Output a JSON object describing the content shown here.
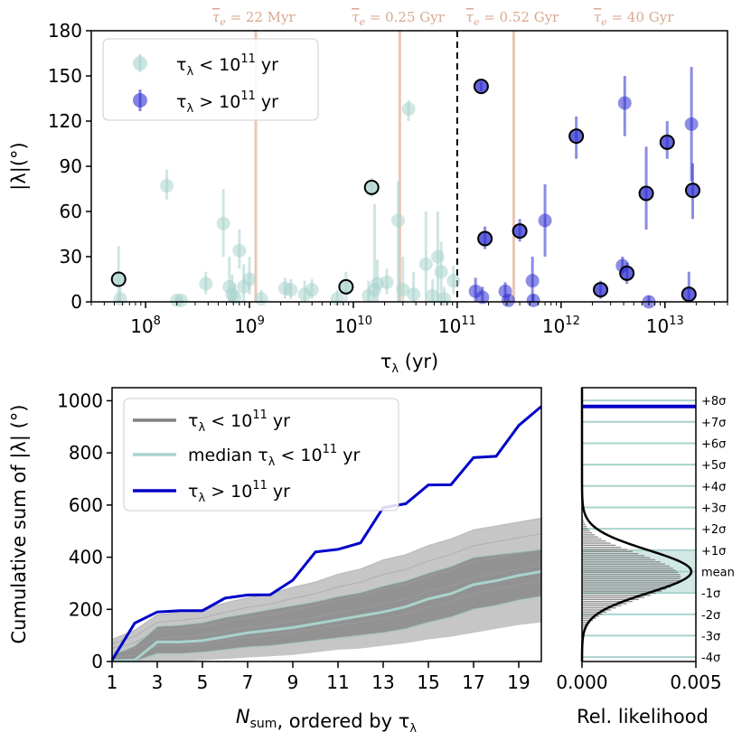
{
  "chart_data": [
    {
      "type": "scatter",
      "xlabel": "τλ (yr)",
      "ylabel": "|λ|(°)",
      "xscale": "log",
      "xlim": [
        30000000,
        40000000000000
      ],
      "ylim": [
        0,
        180
      ],
      "yticks": [
        "0",
        "30",
        "60",
        "90",
        "120",
        "150",
        "180"
      ],
      "xticks": [
        "10^8",
        "10^9",
        "10^10",
        "10^11",
        "10^12",
        "10^13"
      ],
      "colors": {
        "low": "#a9d3cd",
        "high": "#3030d0",
        "tau_lines": "#e7c1ad",
        "edge": "#000000"
      },
      "legend": {
        "placement": "top-left",
        "low_label": "τλ < 10^11 yr",
        "high_label": "τλ > 10^11 yr"
      },
      "threshold": 100000000000,
      "timescale_labels": [
        {
          "x": 1100000000,
          "text": "τe = 22 Myr"
        },
        {
          "x": 27000000000,
          "text": "τe = 0.25 Gyr"
        },
        {
          "x": 340000000000,
          "text": "τe = 0.52 Gyr"
        },
        {
          "x": 5000000000000,
          "text": "τe = 40 Gyr"
        }
      ],
      "tau_lines": [
        1150000000,
        28000000000,
        350000000000
      ],
      "low_series": [
        {
          "x": 55000000,
          "y": 15,
          "lo": 0,
          "hi": 37,
          "edge": true
        },
        {
          "x": 57000000,
          "y": 2,
          "lo": 0,
          "hi": 10,
          "edge": false
        },
        {
          "x": 160000000,
          "y": 77,
          "lo": 68,
          "hi": 88,
          "edge": false
        },
        {
          "x": 200000000,
          "y": 1,
          "lo": 0,
          "hi": 3,
          "edge": false
        },
        {
          "x": 220000000,
          "y": 1,
          "lo": 0,
          "hi": 3,
          "edge": false
        },
        {
          "x": 380000000,
          "y": 12,
          "lo": 5,
          "hi": 20,
          "edge": false
        },
        {
          "x": 560000000,
          "y": 52,
          "lo": 30,
          "hi": 75,
          "edge": false
        },
        {
          "x": 640000000,
          "y": 10,
          "lo": 0,
          "hi": 30,
          "edge": false
        },
        {
          "x": 680000000,
          "y": 5,
          "lo": 0,
          "hi": 18,
          "edge": false
        },
        {
          "x": 720000000,
          "y": 3,
          "lo": 0,
          "hi": 12,
          "edge": false
        },
        {
          "x": 800000000,
          "y": 34,
          "lo": 22,
          "hi": 48,
          "edge": false
        },
        {
          "x": 880000000,
          "y": 10,
          "lo": 0,
          "hi": 25,
          "edge": false
        },
        {
          "x": 1000000000,
          "y": 15,
          "lo": 5,
          "hi": 30,
          "edge": false
        },
        {
          "x": 1300000000,
          "y": 2,
          "lo": 0,
          "hi": 8,
          "edge": false
        },
        {
          "x": 2200000000,
          "y": 9,
          "lo": 2,
          "hi": 16,
          "edge": false
        },
        {
          "x": 2500000000,
          "y": 8,
          "lo": 2,
          "hi": 15,
          "edge": false
        },
        {
          "x": 3400000000,
          "y": 5,
          "lo": 0,
          "hi": 14,
          "edge": false
        },
        {
          "x": 4000000000,
          "y": 8,
          "lo": 2,
          "hi": 15,
          "edge": false
        },
        {
          "x": 7000000000,
          "y": 2,
          "lo": 0,
          "hi": 8,
          "edge": false
        },
        {
          "x": 8500000000,
          "y": 10,
          "lo": 0,
          "hi": 20,
          "edge": true
        },
        {
          "x": 14000000000,
          "y": 4,
          "lo": 0,
          "hi": 14,
          "edge": false
        },
        {
          "x": 15000000000,
          "y": 76,
          "lo": 70,
          "hi": 82,
          "edge": true
        },
        {
          "x": 16000000000,
          "y": 8,
          "lo": 0,
          "hi": 65,
          "edge": false
        },
        {
          "x": 17000000000,
          "y": 12,
          "lo": 0,
          "hi": 28,
          "edge": false
        },
        {
          "x": 21000000000,
          "y": 13,
          "lo": 5,
          "hi": 22,
          "edge": false
        },
        {
          "x": 27000000000,
          "y": 54,
          "lo": 0,
          "hi": 80,
          "edge": false
        },
        {
          "x": 30000000000,
          "y": 8,
          "lo": 0,
          "hi": 30,
          "edge": false
        },
        {
          "x": 34000000000,
          "y": 128,
          "lo": 120,
          "hi": 134,
          "edge": false
        },
        {
          "x": 38000000000,
          "y": 5,
          "lo": 0,
          "hi": 20,
          "edge": false
        },
        {
          "x": 50000000000,
          "y": 25,
          "lo": 0,
          "hi": 60,
          "edge": false
        },
        {
          "x": 58000000000,
          "y": 4,
          "lo": 0,
          "hi": 15,
          "edge": false
        },
        {
          "x": 65000000000,
          "y": 30,
          "lo": 0,
          "hi": 60,
          "edge": false
        },
        {
          "x": 70000000000,
          "y": 20,
          "lo": 0,
          "hi": 40,
          "edge": false
        },
        {
          "x": 75000000000,
          "y": 2,
          "lo": 0,
          "hi": 10,
          "edge": false
        },
        {
          "x": 92000000000,
          "y": 14,
          "lo": 5,
          "hi": 24,
          "edge": false
        }
      ],
      "high_series": [
        {
          "x": 150000000000,
          "y": 7,
          "lo": 0,
          "hi": 16,
          "edge": false
        },
        {
          "x": 170000000000,
          "y": 143,
          "lo": 140,
          "hi": 146,
          "edge": true
        },
        {
          "x": 175000000000,
          "y": 3,
          "lo": 0,
          "hi": 10,
          "edge": false
        },
        {
          "x": 185000000000,
          "y": 42,
          "lo": 35,
          "hi": 50,
          "edge": true
        },
        {
          "x": 290000000000,
          "y": 7,
          "lo": 0,
          "hi": 13,
          "edge": false
        },
        {
          "x": 310000000000,
          "y": 1,
          "lo": 0,
          "hi": 4,
          "edge": false
        },
        {
          "x": 400000000000,
          "y": 47,
          "lo": 40,
          "hi": 55,
          "edge": true
        },
        {
          "x": 530000000000,
          "y": 14,
          "lo": 0,
          "hi": 30,
          "edge": false
        },
        {
          "x": 540000000000,
          "y": 1,
          "lo": 0,
          "hi": 5,
          "edge": false
        },
        {
          "x": 700000000000,
          "y": 54,
          "lo": 30,
          "hi": 78,
          "edge": false
        },
        {
          "x": 1400000000000,
          "y": 110,
          "lo": 95,
          "hi": 123,
          "edge": true
        },
        {
          "x": 2400000000000,
          "y": 8,
          "lo": 2,
          "hi": 14,
          "edge": true
        },
        {
          "x": 3900000000000,
          "y": 24,
          "lo": 18,
          "hi": 30,
          "edge": false
        },
        {
          "x": 4100000000000,
          "y": 132,
          "lo": 110,
          "hi": 150,
          "edge": false
        },
        {
          "x": 4300000000000,
          "y": 19,
          "lo": 12,
          "hi": 26,
          "edge": true
        },
        {
          "x": 6600000000000,
          "y": 72,
          "lo": 48,
          "hi": 103,
          "edge": true
        },
        {
          "x": 7000000000000,
          "y": 0,
          "lo": 0,
          "hi": 4,
          "edge": false
        },
        {
          "x": 10500000000000,
          "y": 106,
          "lo": 95,
          "hi": 120,
          "edge": true
        },
        {
          "x": 17000000000000,
          "y": 5,
          "lo": 0,
          "hi": 20,
          "edge": true
        },
        {
          "x": 18000000000000,
          "y": 118,
          "lo": 80,
          "hi": 156,
          "edge": false
        },
        {
          "x": 18500000000000,
          "y": 74,
          "lo": 55,
          "hi": 92,
          "edge": true
        }
      ]
    },
    {
      "type": "line",
      "xlabel": "Nsum, ordered by τλ",
      "ylabel": "Cumulative sum of |λ| (°)",
      "xlim": [
        1,
        20
      ],
      "ylim": [
        0,
        1050
      ],
      "xticks": [
        "1",
        "3",
        "5",
        "7",
        "9",
        "11",
        "13",
        "15",
        "17",
        "19"
      ],
      "yticks": [
        "0",
        "200",
        "400",
        "600",
        "800",
        "1000"
      ],
      "legend": {
        "placement": "top-left",
        "entries": [
          "τλ < 10^11 yr",
          "median τλ < 10^11 yr",
          "τλ > 10^11 yr"
        ]
      },
      "x": [
        1,
        2,
        3,
        4,
        5,
        6,
        7,
        8,
        9,
        10,
        11,
        12,
        13,
        14,
        15,
        16,
        17,
        18,
        19,
        20
      ],
      "high_values": [
        5,
        147,
        190,
        195,
        195,
        243,
        255,
        256,
        312,
        420,
        430,
        455,
        590,
        605,
        677,
        678,
        782,
        787,
        905,
        978
      ],
      "median_values": [
        3,
        5,
        75,
        75,
        80,
        95,
        110,
        120,
        130,
        145,
        160,
        175,
        190,
        210,
        240,
        260,
        295,
        310,
        330,
        345
      ],
      "band_upper": [
        25,
        60,
        135,
        140,
        150,
        170,
        185,
        200,
        215,
        230,
        250,
        265,
        290,
        310,
        340,
        365,
        400,
        410,
        420,
        430
      ],
      "band_lower": [
        0,
        0,
        30,
        30,
        35,
        45,
        55,
        60,
        70,
        80,
        90,
        100,
        110,
        125,
        150,
        170,
        200,
        215,
        235,
        250
      ],
      "envelope_upper": [
        85,
        120,
        180,
        190,
        200,
        225,
        245,
        260,
        285,
        305,
        335,
        355,
        390,
        410,
        445,
        470,
        505,
        520,
        535,
        550
      ],
      "envelope_lower": [
        0,
        0,
        0,
        0,
        5,
        10,
        15,
        20,
        25,
        35,
        45,
        50,
        60,
        70,
        85,
        95,
        110,
        125,
        140,
        150
      ],
      "colors": {
        "gray": "#808080",
        "median": "#a9d3cd",
        "high": "#0000c8"
      }
    },
    {
      "type": "bar",
      "orientation": "horizontal",
      "xlabel": "Rel. likelihood",
      "xlim": [
        0,
        0.005
      ],
      "ylim": [
        0,
        1050
      ],
      "xticks": [
        "0.000",
        "0.005"
      ],
      "hist_bin_width": 8,
      "hist_bins_y": [
        104,
        112,
        120,
        128,
        136,
        144,
        152,
        160,
        168,
        176,
        184,
        192,
        200,
        208,
        216,
        224,
        232,
        240,
        248,
        256,
        264,
        272,
        280,
        288,
        296,
        304,
        312,
        320,
        328,
        336,
        344,
        352,
        360,
        368,
        376,
        384,
        392,
        400,
        408,
        416,
        424,
        432,
        440,
        448,
        456,
        464,
        472,
        480,
        488,
        496,
        504,
        512,
        520,
        528,
        536,
        544,
        552
      ],
      "hist_values": [
        8e-05,
        0.00012,
        0.00015,
        0.00022,
        0.00028,
        0.00036,
        0.00048,
        0.00062,
        0.00075,
        0.0009,
        0.00108,
        0.00128,
        0.0015,
        0.00172,
        0.00196,
        0.00222,
        0.0025,
        0.00275,
        0.00302,
        0.00325,
        0.0035,
        0.0037,
        0.0039,
        0.00405,
        0.00418,
        0.00428,
        0.00432,
        0.00434,
        0.0043,
        0.00422,
        0.00412,
        0.004,
        0.00385,
        0.00366,
        0.00345,
        0.00322,
        0.003,
        0.00275,
        0.00248,
        0.00222,
        0.00198,
        0.00172,
        0.00148,
        0.00126,
        0.00105,
        0.00086,
        0.0007,
        0.00056,
        0.00044,
        0.00034,
        0.00026,
        0.0002,
        0.00015,
        0.0001,
        7e-05,
        5e-05,
        3e-05
      ],
      "gaussian_mean": 345,
      "gaussian_sigma": 82,
      "gaussian_peak": 0.0048,
      "observed": 978,
      "sigma_levels": [
        {
          "y": 17,
          "label": "-4σ"
        },
        {
          "y": 99,
          "label": "-3σ"
        },
        {
          "y": 181,
          "label": "-2σ"
        },
        {
          "y": 263,
          "label": "-1σ"
        },
        {
          "y": 345,
          "label": "mean"
        },
        {
          "y": 427,
          "label": "+1σ"
        },
        {
          "y": 509,
          "label": "+2σ"
        },
        {
          "y": 591,
          "label": "+3σ"
        },
        {
          "y": 673,
          "label": "+4σ"
        },
        {
          "y": 755,
          "label": "+5σ"
        },
        {
          "y": 837,
          "label": "+6σ"
        },
        {
          "y": 919,
          "label": "+7σ"
        },
        {
          "y": 1001,
          "label": "+8σ"
        }
      ],
      "colors": {
        "hist": "#808080",
        "band": "#cde6e2",
        "lines": "#a9d3cd",
        "curve": "#000000",
        "observed": "#0000c8"
      }
    }
  ]
}
